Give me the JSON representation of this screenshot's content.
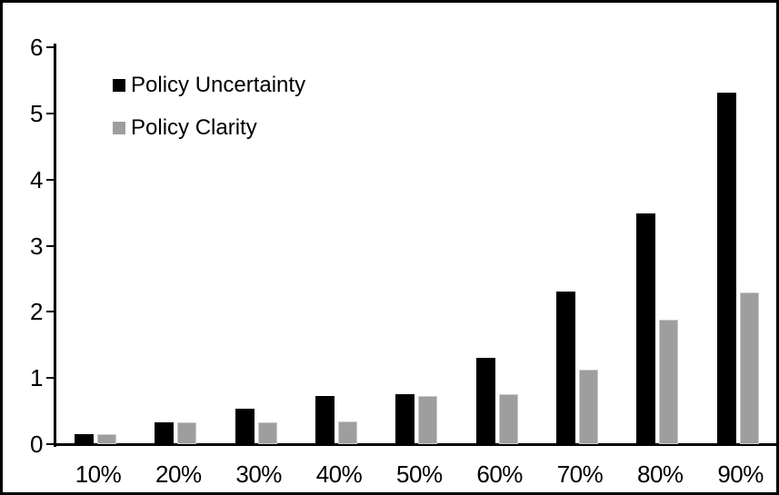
{
  "chart_data": {
    "type": "bar",
    "title": "",
    "xlabel": "",
    "ylabel": "",
    "categories": [
      "10%",
      "20%",
      "30%",
      "40%",
      "50%",
      "60%",
      "70%",
      "80%",
      "90%"
    ],
    "series": [
      {
        "name": "Policy Uncertainty",
        "color": "#000000",
        "values": [
          0.15,
          0.33,
          0.53,
          0.73,
          0.75,
          1.3,
          2.3,
          3.49,
          5.32
        ]
      },
      {
        "name": "Policy Clarity",
        "color": "#9e9e9e",
        "values": [
          0.15,
          0.33,
          0.33,
          0.35,
          0.73,
          0.75,
          1.13,
          1.88,
          2.29
        ]
      }
    ],
    "ylim": [
      0,
      6
    ],
    "yticks": [
      0,
      1,
      2,
      3,
      4,
      5,
      6
    ],
    "grid": false,
    "legend_position": "top-left-inside",
    "axis_color": "#000000",
    "background_color": "#ffffff",
    "border_color": "#000000"
  }
}
